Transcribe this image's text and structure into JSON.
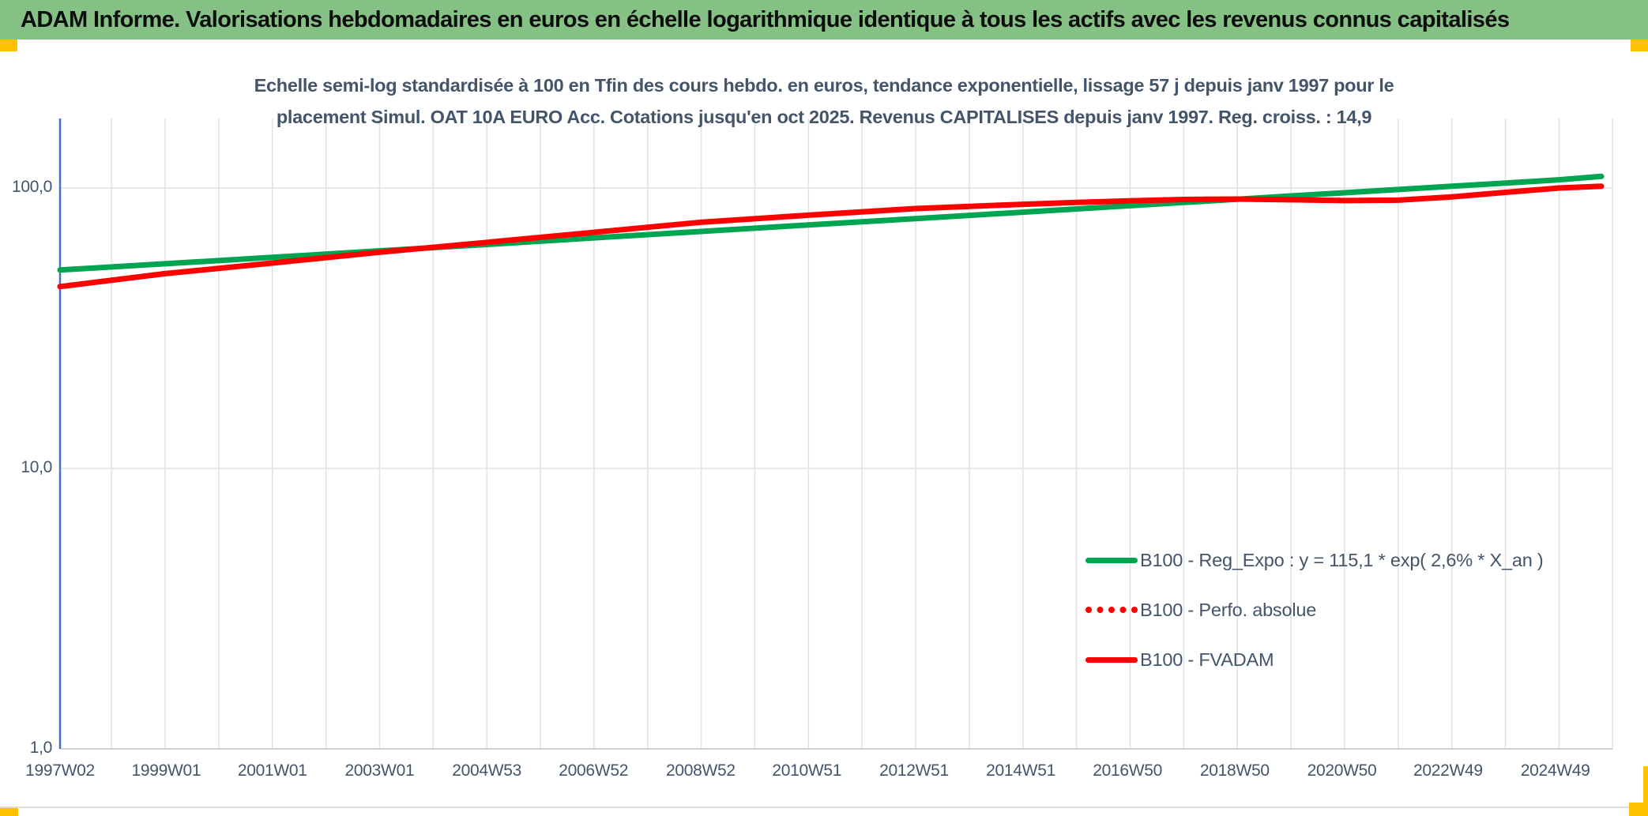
{
  "header": {
    "title": "ADAM Informe. Valorisations hebdomadaires en euros en échelle logarithmique identique à tous les actifs avec les revenus connus capitalisés"
  },
  "chart": {
    "title_line1": "Echelle semi-log standardisée à 100 en Tfin des cours hebdo. en euros, tendance exponentielle, lissage 57 j depuis janv 1997 pour le",
    "title_line2": "placement Simul. OAT 10A EURO Acc. Cotations jusqu'en oct 2025. Revenus CAPITALISES depuis janv 1997. Reg. croiss. : 14,9"
  },
  "chart_data": {
    "type": "line",
    "y_scale": "log",
    "title": "Echelle semi-log standardisée à 100 en Tfin des cours hebdo. en euros, tendance exponentielle, lissage 57 j depuis janv 1997 pour le placement Simul. OAT 10A EURO Acc. Cotations jusqu'en oct 2025. Revenus CAPITALISES depuis janv 1997. Reg. croiss. : 14,9",
    "xlabel": "",
    "ylabel": "",
    "ylim": [
      1,
      170
    ],
    "grid": true,
    "legend_position": "lower-right-inside",
    "x": [
      1997.04,
      1999,
      2001,
      2003,
      2005,
      2007,
      2009,
      2011,
      2013,
      2015,
      2016,
      2017,
      2018,
      2019,
      2020,
      2021,
      2022,
      2023,
      2024,
      2025,
      2025.79
    ],
    "series": [
      {
        "name": "B100 - Reg_Expo : y = 115,1 * exp( 2,6% *  X_an )",
        "color": "#00A551",
        "style": "solid",
        "values": [
          51,
          53.7,
          56.6,
          59.7,
          62.9,
          66.4,
          70.0,
          73.8,
          77.8,
          82.0,
          84.2,
          86.5,
          88.8,
          91.2,
          93.7,
          96.2,
          98.8,
          101.5,
          104.2,
          107.0,
          110
        ]
      },
      {
        "name": "B100 - Perfo. absolue",
        "color": "#FF0000",
        "style": "dotted",
        "values": [
          44.5,
          49.5,
          54,
          59,
          64,
          69.5,
          75.5,
          80,
          84.5,
          87.5,
          88.8,
          90,
          91,
          91.3,
          90.8,
          90.2,
          90.5,
          93,
          96.5,
          100,
          101.5
        ]
      },
      {
        "name": "B100 - FVADAM",
        "color": "#FF0000",
        "style": "solid",
        "values": [
          44.5,
          49.5,
          54,
          59,
          64,
          69.5,
          75.5,
          80,
          84.5,
          87.5,
          88.8,
          90,
          91,
          91.3,
          90.8,
          90.2,
          90.5,
          93,
          96.5,
          100,
          101.5
        ]
      }
    ],
    "y_ticks": [
      "100,0",
      "10,0",
      "1,0"
    ],
    "y_tick_values": [
      100,
      10,
      1
    ],
    "x_tick_labels": [
      "1997W02",
      "1999W01",
      "2001W01",
      "2003W01",
      "2004W53",
      "2006W52",
      "2008W52",
      "2010W51",
      "2012W51",
      "2014W51",
      "2016W50",
      "2018W50",
      "2020W50",
      "2022W49",
      "2024W49"
    ],
    "x_tick_years": [
      1997.04,
      1999.02,
      2001.0,
      2003.0,
      2005.0,
      2006.99,
      2008.99,
      2010.97,
      2012.97,
      2014.96,
      2016.95,
      2018.95,
      2020.95,
      2022.93,
      2024.93
    ]
  },
  "colors": {
    "header_green": "#85C185",
    "accent_gold": "#FFC000",
    "text_slate": "#44546A",
    "grid": "#E2E2E2",
    "axis_blue": "#4472C4",
    "axis_bottom": "#D0D0D0",
    "series_green": "#00A551",
    "series_red": "#FF0000"
  }
}
